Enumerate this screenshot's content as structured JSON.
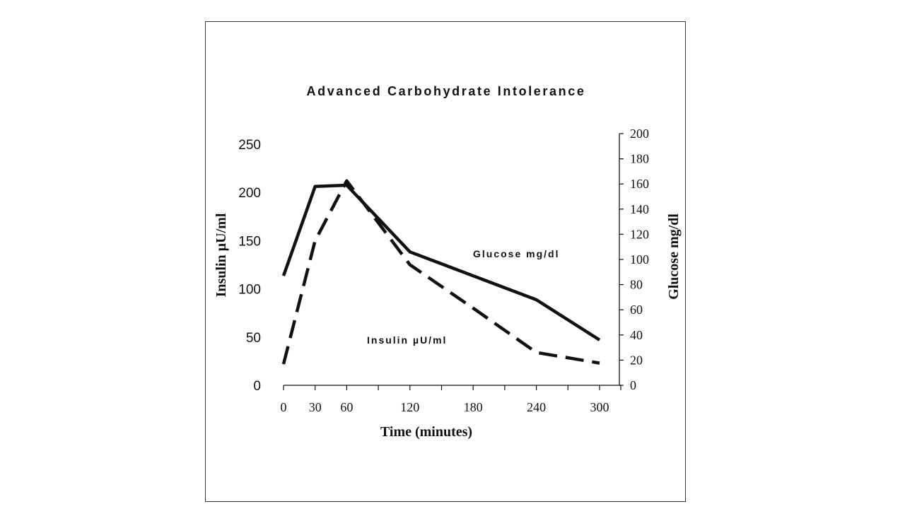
{
  "chart_data": {
    "type": "line",
    "title": "Advanced Carbohydrate Intolerance",
    "xlabel": "Time (minutes)",
    "ylabel_left": "Insulin µU/ml",
    "ylabel_right": "Glucose mg/dl",
    "x_ticks": [
      0,
      30,
      60,
      120,
      180,
      240,
      300
    ],
    "xlim": [
      0,
      300
    ],
    "ylim_left": [
      0,
      250
    ],
    "ylim_right": [
      0,
      200
    ],
    "y_ticks_left": [
      0,
      50,
      100,
      150,
      200,
      250
    ],
    "y_ticks_right": [
      0,
      20,
      40,
      60,
      80,
      100,
      120,
      140,
      160,
      180,
      200
    ],
    "grid": false,
    "series": [
      {
        "name": "Glucose mg/dl",
        "axis": "right",
        "style": "solid",
        "x": [
          0,
          30,
          60,
          120,
          240,
          300
        ],
        "values": [
          87,
          158,
          159,
          106,
          68,
          36
        ]
      },
      {
        "name": "Insulin µU/ml",
        "axis": "left",
        "style": "dashed",
        "x": [
          0,
          30,
          60,
          120,
          180,
          240,
          300
        ],
        "values": [
          22,
          150,
          212,
          125,
          80,
          34,
          23
        ]
      }
    ]
  }
}
